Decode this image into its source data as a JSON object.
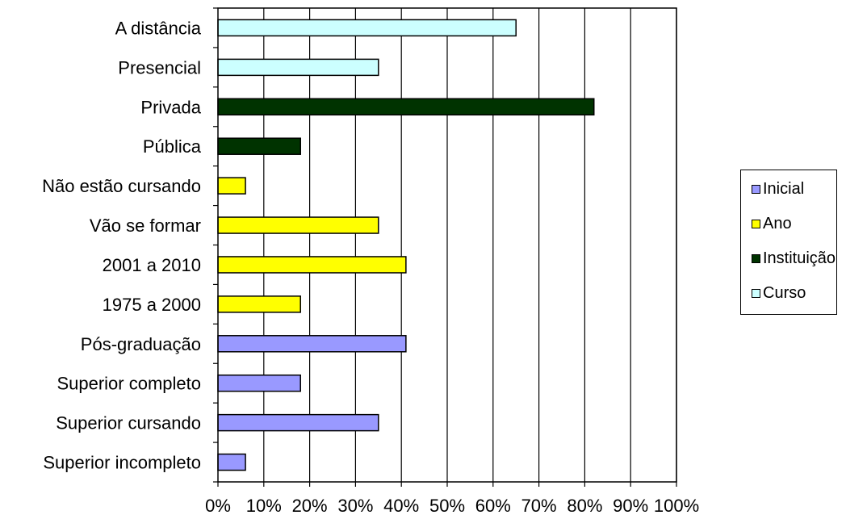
{
  "chart_data": {
    "type": "bar",
    "orientation": "horizontal",
    "categories": [
      "A distância",
      "Presencial",
      "Privada",
      "Pública",
      "Não estão cursando",
      "Vão se formar",
      "2001 a 2010",
      "1975 a 2000",
      "Pós-graduação",
      "Superior completo",
      "Superior cursando",
      "Superior incompleto"
    ],
    "values": [
      65,
      35,
      82,
      18,
      6,
      35,
      41,
      18,
      41,
      18,
      35,
      6
    ],
    "bar_groups": [
      "Curso",
      "Curso",
      "Instituição",
      "Instituição",
      "Ano",
      "Ano",
      "Ano",
      "Ano",
      "Inicial",
      "Inicial",
      "Inicial",
      "Inicial"
    ],
    "series": [
      {
        "name": "Inicial",
        "color": "#9999ff"
      },
      {
        "name": "Ano",
        "color": "#ffff00"
      },
      {
        "name": "Instituição",
        "color": "#003300"
      },
      {
        "name": "Curso",
        "color": "#ccffff"
      }
    ],
    "x_ticks": [
      "0%",
      "10%",
      "20%",
      "30%",
      "40%",
      "50%",
      "60%",
      "70%",
      "80%",
      "90%",
      "100%"
    ],
    "xlim": [
      0,
      100
    ],
    "grid": true,
    "legend_position": "right",
    "title": "",
    "xlabel": "",
    "ylabel": ""
  }
}
